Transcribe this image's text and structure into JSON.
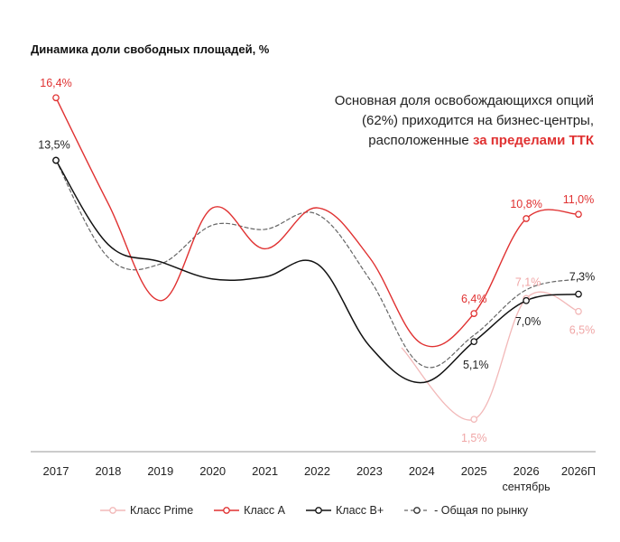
{
  "title": "Динамика доли свободных площадей, %",
  "annotation": {
    "line1": "Основная доля освобождающихся опций",
    "line2": "(62%) приходится на бизнес-центры,",
    "line3_prefix": "расположенные ",
    "line3_highlight": "за пределами ТТК"
  },
  "colors": {
    "prime": "#f2b8b8",
    "class_a": "#e03131",
    "class_b": "#111111",
    "market": "#666666",
    "axis": "#999999",
    "text": "#222222"
  },
  "chart_data": {
    "type": "line",
    "title": "Динамика доли свободных площадей, %",
    "unit": "%",
    "categories": [
      "2017",
      "2018",
      "2019",
      "2020",
      "2021",
      "2022",
      "2023",
      "2024",
      "2025",
      "2026",
      "2026П"
    ],
    "category_sublabels": [
      "",
      "",
      "",
      "",
      "",
      "",
      "",
      "",
      "",
      "сентябрь",
      ""
    ],
    "ylim": [
      0,
      18
    ],
    "series": [
      {
        "name": "Класс Prime",
        "key": "prime",
        "values": [
          null,
          null,
          null,
          null,
          null,
          null,
          null,
          null,
          1.5,
          7.1,
          6.5
        ],
        "marked": [
          false,
          false,
          false,
          false,
          false,
          false,
          false,
          false,
          true,
          true,
          true
        ],
        "labels": [
          "",
          "",
          "",
          "",
          "",
          "",
          "",
          "",
          "1,5%",
          "7,1%",
          "6,5%"
        ]
      },
      {
        "name": "Класс А",
        "key": "class_a",
        "values": [
          16.4,
          11.5,
          7.0,
          11.3,
          9.4,
          11.3,
          9.0,
          5.0,
          6.4,
          10.8,
          11.0
        ],
        "marked": [
          true,
          false,
          false,
          false,
          false,
          false,
          false,
          false,
          true,
          true,
          true
        ],
        "labels": [
          "16,4%",
          "",
          "",
          "",
          "",
          "",
          "",
          "",
          "6,4%",
          "10,8%",
          "11,0%"
        ]
      },
      {
        "name": "Класс В+",
        "key": "class_b",
        "values": [
          13.5,
          9.6,
          8.8,
          8.0,
          8.1,
          8.7,
          4.9,
          3.2,
          5.1,
          7.0,
          7.3
        ],
        "marked": [
          true,
          false,
          false,
          false,
          false,
          false,
          false,
          false,
          true,
          true,
          true
        ],
        "labels": [
          "13,5%",
          "",
          "",
          "",
          "",
          "",
          "",
          "",
          "5,1%",
          "7,0%",
          "7,3%"
        ]
      },
      {
        "name": "Общая по рынку",
        "key": "market",
        "values": [
          13.5,
          9.0,
          8.7,
          10.5,
          10.3,
          11.0,
          8.0,
          4.0,
          5.4,
          7.5,
          8.0
        ],
        "marked": [
          true,
          false,
          false,
          false,
          false,
          false,
          false,
          false,
          false,
          false,
          false
        ],
        "labels": [
          "",
          "",
          "",
          "",
          "",
          "",
          "",
          "",
          "",
          "",
          ""
        ]
      }
    ],
    "legend": [
      "Класс Prime",
      "Класс А",
      "Класс В+",
      "Общая по рынку"
    ],
    "legend_position": "bottom",
    "grid": false
  }
}
